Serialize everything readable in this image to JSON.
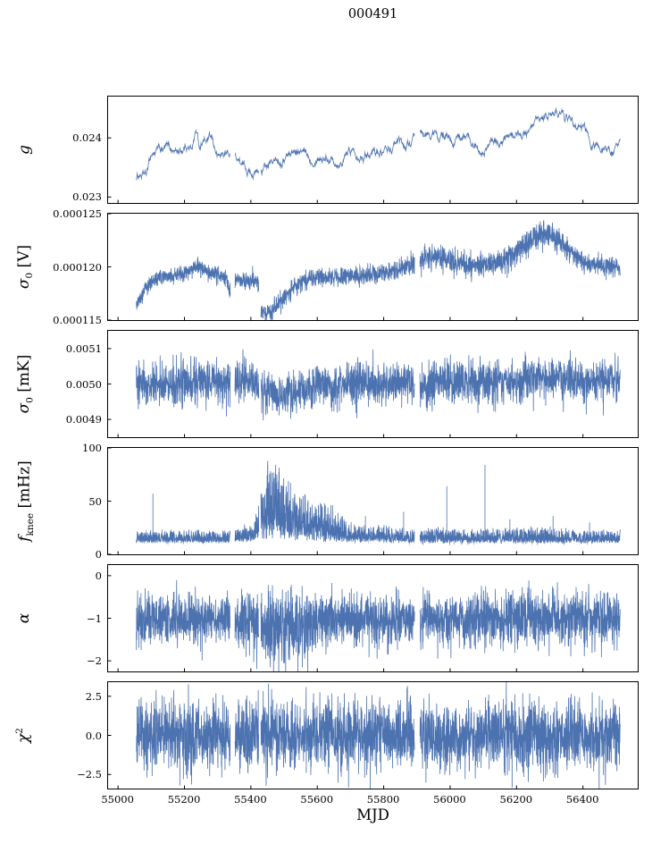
{
  "chart_data": {
    "type": "line",
    "title": "000491",
    "xlabel": "MJD",
    "color": "#4c72b0",
    "xlim": [
      54970,
      56565
    ],
    "x_data_range": [
      55055,
      56512
    ],
    "gaps": [
      [
        55338,
        55352
      ],
      [
        55424,
        55430
      ],
      [
        55893,
        55909
      ]
    ],
    "xticks": [
      {
        "v": 55000,
        "label": "55000"
      },
      {
        "v": 55200,
        "label": "55200"
      },
      {
        "v": 55400,
        "label": "55400"
      },
      {
        "v": 55600,
        "label": "55600"
      },
      {
        "v": 55800,
        "label": "55800"
      },
      {
        "v": 56000,
        "label": "56000"
      },
      {
        "v": 56200,
        "label": "56200"
      },
      {
        "v": 56400,
        "label": "56400"
      }
    ],
    "panels": [
      {
        "id": "gain",
        "ylabel": {
          "main": "g"
        },
        "ylim": [
          0.0229,
          0.0247
        ],
        "yticks": [
          {
            "v": 0.023,
            "label": "0.023"
          },
          {
            "v": 0.024,
            "label": "0.024"
          }
        ],
        "n": 1600,
        "dist": "walk",
        "noise": 0.00012,
        "anchors": [
          [
            55055,
            0.02332
          ],
          [
            55065,
            0.0234
          ],
          [
            55075,
            0.02336
          ],
          [
            55085,
            0.02334
          ],
          [
            55100,
            0.02372
          ],
          [
            55115,
            0.02378
          ],
          [
            55130,
            0.02376
          ],
          [
            55145,
            0.02381
          ],
          [
            55160,
            0.02379
          ],
          [
            55175,
            0.02377
          ],
          [
            55190,
            0.02379
          ],
          [
            55205,
            0.0239
          ],
          [
            55220,
            0.02381
          ],
          [
            55235,
            0.02414
          ],
          [
            55245,
            0.02384
          ],
          [
            55255,
            0.02399
          ],
          [
            55265,
            0.02394
          ],
          [
            55275,
            0.02396
          ],
          [
            55285,
            0.0239
          ],
          [
            55300,
            0.02366
          ],
          [
            55315,
            0.02371
          ],
          [
            55330,
            0.02372
          ],
          [
            55345,
            0.0237
          ],
          [
            55360,
            0.02368
          ],
          [
            55375,
            0.02352
          ],
          [
            55390,
            0.02348
          ],
          [
            55405,
            0.02344
          ],
          [
            55420,
            0.02341
          ],
          [
            55440,
            0.02347
          ],
          [
            55460,
            0.02353
          ],
          [
            55480,
            0.02359
          ],
          [
            55500,
            0.02369
          ],
          [
            55520,
            0.02377
          ],
          [
            55540,
            0.02379
          ],
          [
            55560,
            0.02371
          ],
          [
            55580,
            0.02364
          ],
          [
            55600,
            0.02377
          ],
          [
            55620,
            0.02372
          ],
          [
            55640,
            0.02369
          ],
          [
            55660,
            0.02364
          ],
          [
            55680,
            0.02369
          ],
          [
            55700,
            0.02377
          ],
          [
            55720,
            0.02379
          ],
          [
            55740,
            0.02377
          ],
          [
            55760,
            0.02381
          ],
          [
            55780,
            0.02379
          ],
          [
            55800,
            0.02378
          ],
          [
            55830,
            0.02381
          ],
          [
            55860,
            0.02386
          ],
          [
            55890,
            0.02391
          ],
          [
            55910,
            0.02398
          ],
          [
            55930,
            0.02401
          ],
          [
            55950,
            0.02404
          ],
          [
            55970,
            0.02402
          ],
          [
            55990,
            0.02399
          ],
          [
            56010,
            0.02397
          ],
          [
            56030,
            0.02401
          ],
          [
            56050,
            0.02397
          ],
          [
            56070,
            0.02391
          ],
          [
            56090,
            0.02386
          ],
          [
            56110,
            0.02388
          ],
          [
            56130,
            0.02391
          ],
          [
            56150,
            0.02394
          ],
          [
            56170,
            0.02397
          ],
          [
            56190,
            0.02399
          ],
          [
            56210,
            0.02403
          ],
          [
            56230,
            0.02407
          ],
          [
            56250,
            0.02412
          ],
          [
            56270,
            0.02421
          ],
          [
            56290,
            0.02432
          ],
          [
            56310,
            0.02442
          ],
          [
            56330,
            0.02446
          ],
          [
            56350,
            0.02438
          ],
          [
            56370,
            0.02425
          ],
          [
            56390,
            0.02428
          ],
          [
            56410,
            0.02408
          ],
          [
            56430,
            0.02391
          ],
          [
            56450,
            0.02384
          ],
          [
            56470,
            0.02382
          ],
          [
            56490,
            0.02379
          ],
          [
            56512,
            0.02378
          ]
        ]
      },
      {
        "id": "sigma0-volts",
        "ylabel": {
          "main": "σ",
          "sub": "0",
          "rest": " [V]"
        },
        "ylim": [
          0.000115,
          0.000125
        ],
        "yticks": [
          {
            "v": 0.000115,
            "label": "0.000115"
          },
          {
            "v": 0.00012,
            "label": "0.000120"
          },
          {
            "v": 0.000125,
            "label": "0.000125"
          }
        ],
        "n": 2600,
        "dist": "gauss",
        "noise": 4e-07,
        "noise_anchors": [
          [
            55055,
            4e-07
          ],
          [
            55400,
            4e-07
          ],
          [
            55450,
            5e-07
          ],
          [
            55600,
            4e-07
          ],
          [
            55850,
            5e-07
          ],
          [
            55900,
            6e-07
          ],
          [
            56100,
            5.5e-07
          ],
          [
            56250,
            6.5e-07
          ],
          [
            56400,
            5e-07
          ],
          [
            56512,
            4.5e-07
          ]
        ],
        "anchors": [
          [
            55055,
            0.0001163
          ],
          [
            55070,
            0.0001172
          ],
          [
            55085,
            0.000118
          ],
          [
            55100,
            0.0001186
          ],
          [
            55130,
            0.000119
          ],
          [
            55160,
            0.0001192
          ],
          [
            55190,
            0.0001193
          ],
          [
            55215,
            0.0001196
          ],
          [
            55235,
            0.00012
          ],
          [
            55255,
            0.0001197
          ],
          [
            55280,
            0.0001194
          ],
          [
            55310,
            0.0001192
          ],
          [
            55328,
            0.000119
          ],
          [
            55336,
            0.0001174
          ],
          [
            55344,
            0.0001186
          ],
          [
            55365,
            0.0001188
          ],
          [
            55395,
            0.0001188
          ],
          [
            55420,
            0.0001187
          ],
          [
            55432,
            0.0001158
          ],
          [
            55455,
            0.0001156
          ],
          [
            55475,
            0.0001163
          ],
          [
            55500,
            0.0001171
          ],
          [
            55530,
            0.000118
          ],
          [
            55560,
            0.0001187
          ],
          [
            55590,
            0.0001189
          ],
          [
            55630,
            0.000119
          ],
          [
            55680,
            0.0001191
          ],
          [
            55730,
            0.0001192
          ],
          [
            55780,
            0.0001194
          ],
          [
            55830,
            0.0001196
          ],
          [
            55870,
            0.0001201
          ],
          [
            55900,
            0.0001205
          ],
          [
            55930,
            0.0001208
          ],
          [
            55960,
            0.000121
          ],
          [
            55990,
            0.0001207
          ],
          [
            56020,
            0.0001203
          ],
          [
            56060,
            0.00012
          ],
          [
            56100,
            0.0001202
          ],
          [
            56150,
            0.0001205
          ],
          [
            56200,
            0.0001213
          ],
          [
            56240,
            0.0001224
          ],
          [
            56270,
            0.000123
          ],
          [
            56300,
            0.0001231
          ],
          [
            56330,
            0.0001224
          ],
          [
            56360,
            0.0001214
          ],
          [
            56400,
            0.0001206
          ],
          [
            56450,
            0.0001201
          ],
          [
            56512,
            0.0001199
          ]
        ]
      },
      {
        "id": "sigma0-mk",
        "ylabel": {
          "main": "σ",
          "sub": "0",
          "rest": " [mK]"
        },
        "ylim": [
          0.00485,
          0.00515
        ],
        "yticks": [
          {
            "v": 0.0049,
            "label": "0.0049"
          },
          {
            "v": 0.005,
            "label": "0.0050"
          },
          {
            "v": 0.0051,
            "label": "0.0051"
          }
        ],
        "n": 2600,
        "dist": "gauss",
        "noise": 3e-05,
        "anchors": [
          [
            55055,
            0.005
          ],
          [
            55150,
            0.005
          ],
          [
            55200,
            0.005005
          ],
          [
            55250,
            0.005005
          ],
          [
            55300,
            0.005
          ],
          [
            55350,
            0.005005
          ],
          [
            55400,
            0.005015
          ],
          [
            55425,
            0.00498
          ],
          [
            55480,
            0.004975
          ],
          [
            55540,
            0.00498
          ],
          [
            55580,
            0.00499
          ],
          [
            55620,
            0.005
          ],
          [
            55660,
            0.004995
          ],
          [
            55700,
            0.005
          ],
          [
            55800,
            0.005
          ],
          [
            55900,
            0.005
          ],
          [
            55950,
            0.005005
          ],
          [
            56050,
            0.005005
          ],
          [
            56150,
            0.005005
          ],
          [
            56200,
            0.00501
          ],
          [
            56250,
            0.005015
          ],
          [
            56300,
            0.005015
          ],
          [
            56350,
            0.00501
          ],
          [
            56400,
            0.00501
          ],
          [
            56450,
            0.00501
          ],
          [
            56512,
            0.005015
          ]
        ]
      },
      {
        "id": "fknee",
        "ylabel": {
          "main": "f",
          "sub": "knee",
          "rest": " [mHz]"
        },
        "ylim": [
          0,
          100
        ],
        "yticks": [
          {
            "v": 0,
            "label": "0"
          },
          {
            "v": 50,
            "label": "50"
          },
          {
            "v": 100,
            "label": "100"
          }
        ],
        "n": 3000,
        "dist": "pos",
        "noise": 10,
        "noise_anchors": [
          [
            55055,
            10
          ],
          [
            55350,
            10
          ],
          [
            55410,
            16
          ],
          [
            55430,
            45
          ],
          [
            55450,
            62
          ],
          [
            55470,
            62
          ],
          [
            55490,
            56
          ],
          [
            55510,
            50
          ],
          [
            55530,
            45
          ],
          [
            55560,
            38
          ],
          [
            55590,
            30
          ],
          [
            55610,
            36
          ],
          [
            55640,
            30
          ],
          [
            55670,
            22
          ],
          [
            55700,
            17
          ],
          [
            55750,
            14
          ],
          [
            55800,
            15
          ],
          [
            55850,
            12
          ],
          [
            55900,
            11
          ],
          [
            55950,
            13
          ],
          [
            56050,
            11
          ],
          [
            56150,
            13
          ],
          [
            56250,
            13
          ],
          [
            56350,
            12
          ],
          [
            56512,
            10
          ]
        ],
        "anchors": [
          [
            55055,
            12
          ],
          [
            55350,
            12
          ],
          [
            55410,
            14
          ],
          [
            55430,
            18
          ],
          [
            55450,
            22
          ],
          [
            55470,
            22
          ],
          [
            55490,
            21
          ],
          [
            55510,
            20
          ],
          [
            55530,
            19
          ],
          [
            55560,
            18
          ],
          [
            55590,
            16
          ],
          [
            55610,
            17
          ],
          [
            55640,
            16
          ],
          [
            55670,
            14
          ],
          [
            55700,
            13
          ],
          [
            55750,
            13
          ],
          [
            55900,
            12
          ],
          [
            56512,
            12
          ]
        ],
        "spikes": [
          [
            55105,
            57
          ],
          [
            55610,
            47
          ],
          [
            55745,
            36
          ],
          [
            55860,
            40
          ],
          [
            55990,
            64
          ],
          [
            56105,
            84
          ],
          [
            56180,
            33
          ],
          [
            56310,
            36
          ],
          [
            56420,
            30
          ]
        ]
      },
      {
        "id": "alpha",
        "ylabel": {
          "main": "α"
        },
        "ylim": [
          -2.25,
          0.25
        ],
        "yticks": [
          {
            "v": -2,
            "label": "−2"
          },
          {
            "v": -1,
            "label": "−1"
          },
          {
            "v": 0,
            "label": "0"
          }
        ],
        "n": 3000,
        "dist": "gauss",
        "noise": 0.3,
        "noise_anchors": [
          [
            55055,
            0.3
          ],
          [
            55250,
            0.3
          ],
          [
            55290,
            0.22
          ],
          [
            55340,
            0.28
          ],
          [
            55400,
            0.38
          ],
          [
            55450,
            0.44
          ],
          [
            55550,
            0.44
          ],
          [
            55600,
            0.36
          ],
          [
            55650,
            0.3
          ],
          [
            56000,
            0.3
          ],
          [
            56100,
            0.34
          ],
          [
            56250,
            0.32
          ],
          [
            56512,
            0.3
          ]
        ],
        "anchors": [
          [
            55055,
            -1
          ],
          [
            55250,
            -1
          ],
          [
            55290,
            -1.02
          ],
          [
            55330,
            -1
          ],
          [
            55380,
            -1.05
          ],
          [
            55420,
            -1.15
          ],
          [
            55460,
            -1.25
          ],
          [
            55500,
            -1.28
          ],
          [
            55540,
            -1.25
          ],
          [
            55580,
            -1.15
          ],
          [
            55620,
            -1.05
          ],
          [
            55660,
            -1
          ],
          [
            55700,
            -1.02
          ],
          [
            56512,
            -1
          ]
        ]
      },
      {
        "id": "chi2",
        "ylabel": {
          "main": "χ",
          "sup": "2"
        },
        "ylim": [
          -3.4,
          3.4
        ],
        "yticks": [
          {
            "v": -2.5,
            "label": "−2.5"
          },
          {
            "v": 0,
            "label": "0.0"
          },
          {
            "v": 2.5,
            "label": "2.5"
          }
        ],
        "n": 3000,
        "dist": "gauss",
        "noise": 1.1,
        "anchors": [
          [
            55055,
            0
          ],
          [
            56512,
            0
          ]
        ]
      }
    ]
  }
}
